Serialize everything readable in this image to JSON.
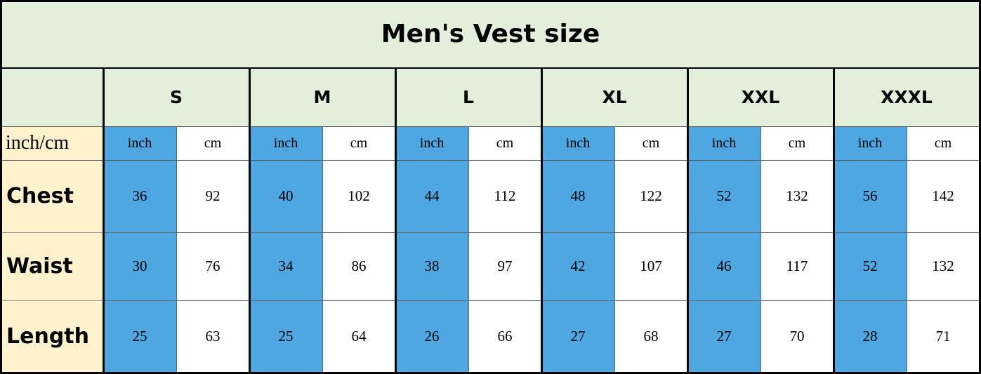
{
  "header": {
    "title": "Men's Vest size"
  },
  "table": {
    "unit_row_label": "inch/cm",
    "unit_labels": [
      "inch",
      "cm"
    ],
    "sizes": [
      "S",
      "M",
      "L",
      "XL",
      "XXL",
      "XXXL"
    ],
    "rows": [
      {
        "label": "Chest",
        "values": [
          36,
          92,
          40,
          102,
          44,
          112,
          48,
          122,
          52,
          132,
          56,
          142
        ]
      },
      {
        "label": "Waist",
        "values": [
          30,
          76,
          34,
          86,
          38,
          97,
          42,
          107,
          46,
          117,
          52,
          132
        ]
      },
      {
        "label": "Length",
        "values": [
          25,
          63,
          25,
          64,
          26,
          66,
          27,
          68,
          27,
          70,
          28,
          71
        ]
      }
    ]
  }
}
